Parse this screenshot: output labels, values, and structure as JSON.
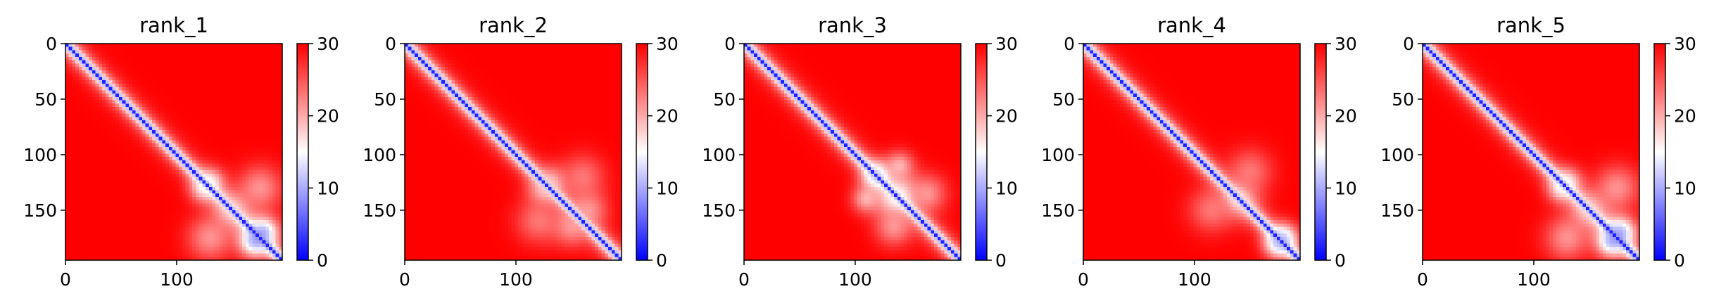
{
  "chart_data": [
    {
      "type": "heatmap",
      "title": "rank_1",
      "matrix_size": 195,
      "x_ticks": [
        0,
        100
      ],
      "y_ticks": [
        0,
        50,
        100,
        150
      ],
      "xlim": [
        0,
        195
      ],
      "ylim": [
        195,
        0
      ],
      "colorbar": {
        "range": [
          0,
          30
        ],
        "ticks": [
          0,
          10,
          20,
          30
        ],
        "colormap": "bwr",
        "colors": [
          "#0000ff",
          "#ffffff",
          "#ff0000"
        ]
      },
      "diagonal_value": 2,
      "background_value": 30,
      "features": [
        {
          "x": 125,
          "y": 130,
          "sigma": 9,
          "value": 14
        },
        {
          "x": 150,
          "y": 150,
          "sigma": 12,
          "value": 17
        },
        {
          "x": 175,
          "y": 130,
          "sigma": 14,
          "value": 20
        },
        {
          "x": 170,
          "y": 178,
          "sigma": 10,
          "value": 8
        }
      ]
    },
    {
      "type": "heatmap",
      "title": "rank_2",
      "matrix_size": 195,
      "x_ticks": [
        0,
        100
      ],
      "y_ticks": [
        0,
        50,
        100,
        150
      ],
      "xlim": [
        0,
        195
      ],
      "ylim": [
        195,
        0
      ],
      "colorbar": {
        "range": [
          0,
          30
        ],
        "ticks": [
          0,
          10,
          20,
          30
        ],
        "colormap": "bwr",
        "colors": [
          "#0000ff",
          "#ffffff",
          "#ff0000"
        ]
      },
      "diagonal_value": 2,
      "background_value": 30,
      "features": [
        {
          "x": 125,
          "y": 132,
          "sigma": 10,
          "value": 18
        },
        {
          "x": 160,
          "y": 120,
          "sigma": 14,
          "value": 22
        },
        {
          "x": 150,
          "y": 165,
          "sigma": 12,
          "value": 20
        }
      ]
    },
    {
      "type": "heatmap",
      "title": "rank_3",
      "matrix_size": 195,
      "x_ticks": [
        0,
        100
      ],
      "y_ticks": [
        0,
        50,
        100,
        150
      ],
      "xlim": [
        0,
        195
      ],
      "ylim": [
        195,
        0
      ],
      "colorbar": {
        "range": [
          0,
          30
        ],
        "ticks": [
          0,
          10,
          20,
          30
        ],
        "colormap": "bwr",
        "colors": [
          "#0000ff",
          "#ffffff",
          "#ff0000"
        ]
      },
      "diagonal_value": 2,
      "background_value": 30,
      "features": [
        {
          "x": 120,
          "y": 118,
          "sigma": 9,
          "value": 12
        },
        {
          "x": 140,
          "y": 135,
          "sigma": 12,
          "value": 15
        },
        {
          "x": 110,
          "y": 140,
          "sigma": 9,
          "value": 18
        },
        {
          "x": 165,
          "y": 135,
          "sigma": 12,
          "value": 20
        }
      ]
    },
    {
      "type": "heatmap",
      "title": "rank_4",
      "matrix_size": 195,
      "x_ticks": [
        0,
        100
      ],
      "y_ticks": [
        0,
        50,
        100,
        150
      ],
      "xlim": [
        0,
        195
      ],
      "ylim": [
        195,
        0
      ],
      "colorbar": {
        "range": [
          0,
          30
        ],
        "ticks": [
          0,
          10,
          20,
          30
        ],
        "colormap": "bwr",
        "colors": [
          "#0000ff",
          "#ffffff",
          "#ff0000"
        ]
      },
      "diagonal_value": 2,
      "background_value": 30,
      "features": [
        {
          "x": 140,
          "y": 140,
          "sigma": 12,
          "value": 17
        },
        {
          "x": 150,
          "y": 115,
          "sigma": 14,
          "value": 22
        },
        {
          "x": 175,
          "y": 180,
          "sigma": 9,
          "value": 10
        }
      ]
    },
    {
      "type": "heatmap",
      "title": "rank_5",
      "matrix_size": 195,
      "x_ticks": [
        0,
        100
      ],
      "y_ticks": [
        0,
        50,
        100,
        150
      ],
      "xlim": [
        0,
        195
      ],
      "ylim": [
        195,
        0
      ],
      "colorbar": {
        "range": [
          0,
          30
        ],
        "ticks": [
          0,
          10,
          20,
          30
        ],
        "colormap": "bwr",
        "colors": [
          "#0000ff",
          "#ffffff",
          "#ff0000"
        ]
      },
      "diagonal_value": 2,
      "background_value": 30,
      "features": [
        {
          "x": 125,
          "y": 130,
          "sigma": 9,
          "value": 14
        },
        {
          "x": 150,
          "y": 150,
          "sigma": 12,
          "value": 17
        },
        {
          "x": 175,
          "y": 130,
          "sigma": 14,
          "value": 20
        },
        {
          "x": 170,
          "y": 178,
          "sigma": 10,
          "value": 8
        }
      ]
    }
  ]
}
